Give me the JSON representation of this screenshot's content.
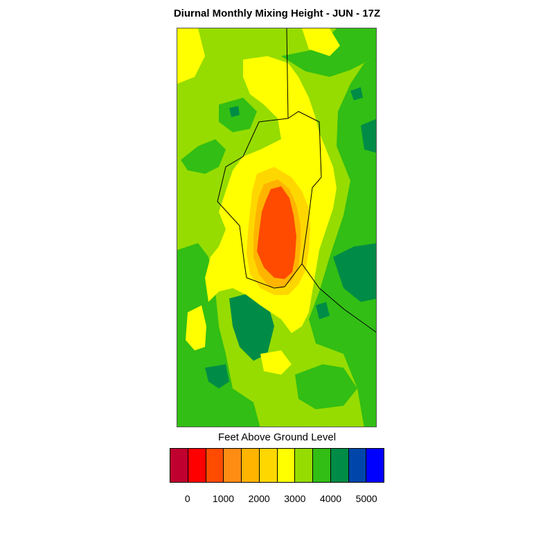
{
  "title": "Diurnal Monthly Mixing Height - JUN - 17Z",
  "legend": {
    "title": "Feet Above Ground Level",
    "colors": [
      "#c0002f",
      "#ff0000",
      "#ff4b00",
      "#ff8c14",
      "#ffb400",
      "#ffd700",
      "#ffff00",
      "#96dc00",
      "#32be14",
      "#008c46",
      "#0046aa",
      "#0000ff"
    ],
    "tick_labels": [
      "0",
      "1000",
      "2000",
      "3000",
      "4000",
      "5000"
    ]
  },
  "map": {
    "colors": {
      "bg": "#96dc00",
      "level_3500_4000": "#32be14",
      "level_4000_4500": "#008c46",
      "level_2500_3000": "#ffff00",
      "level_2000_2500": "#ffd700",
      "level_1500_2000": "#ffb400",
      "level_1000_1500": "#ff4b00",
      "boundary": "#000000"
    }
  }
}
